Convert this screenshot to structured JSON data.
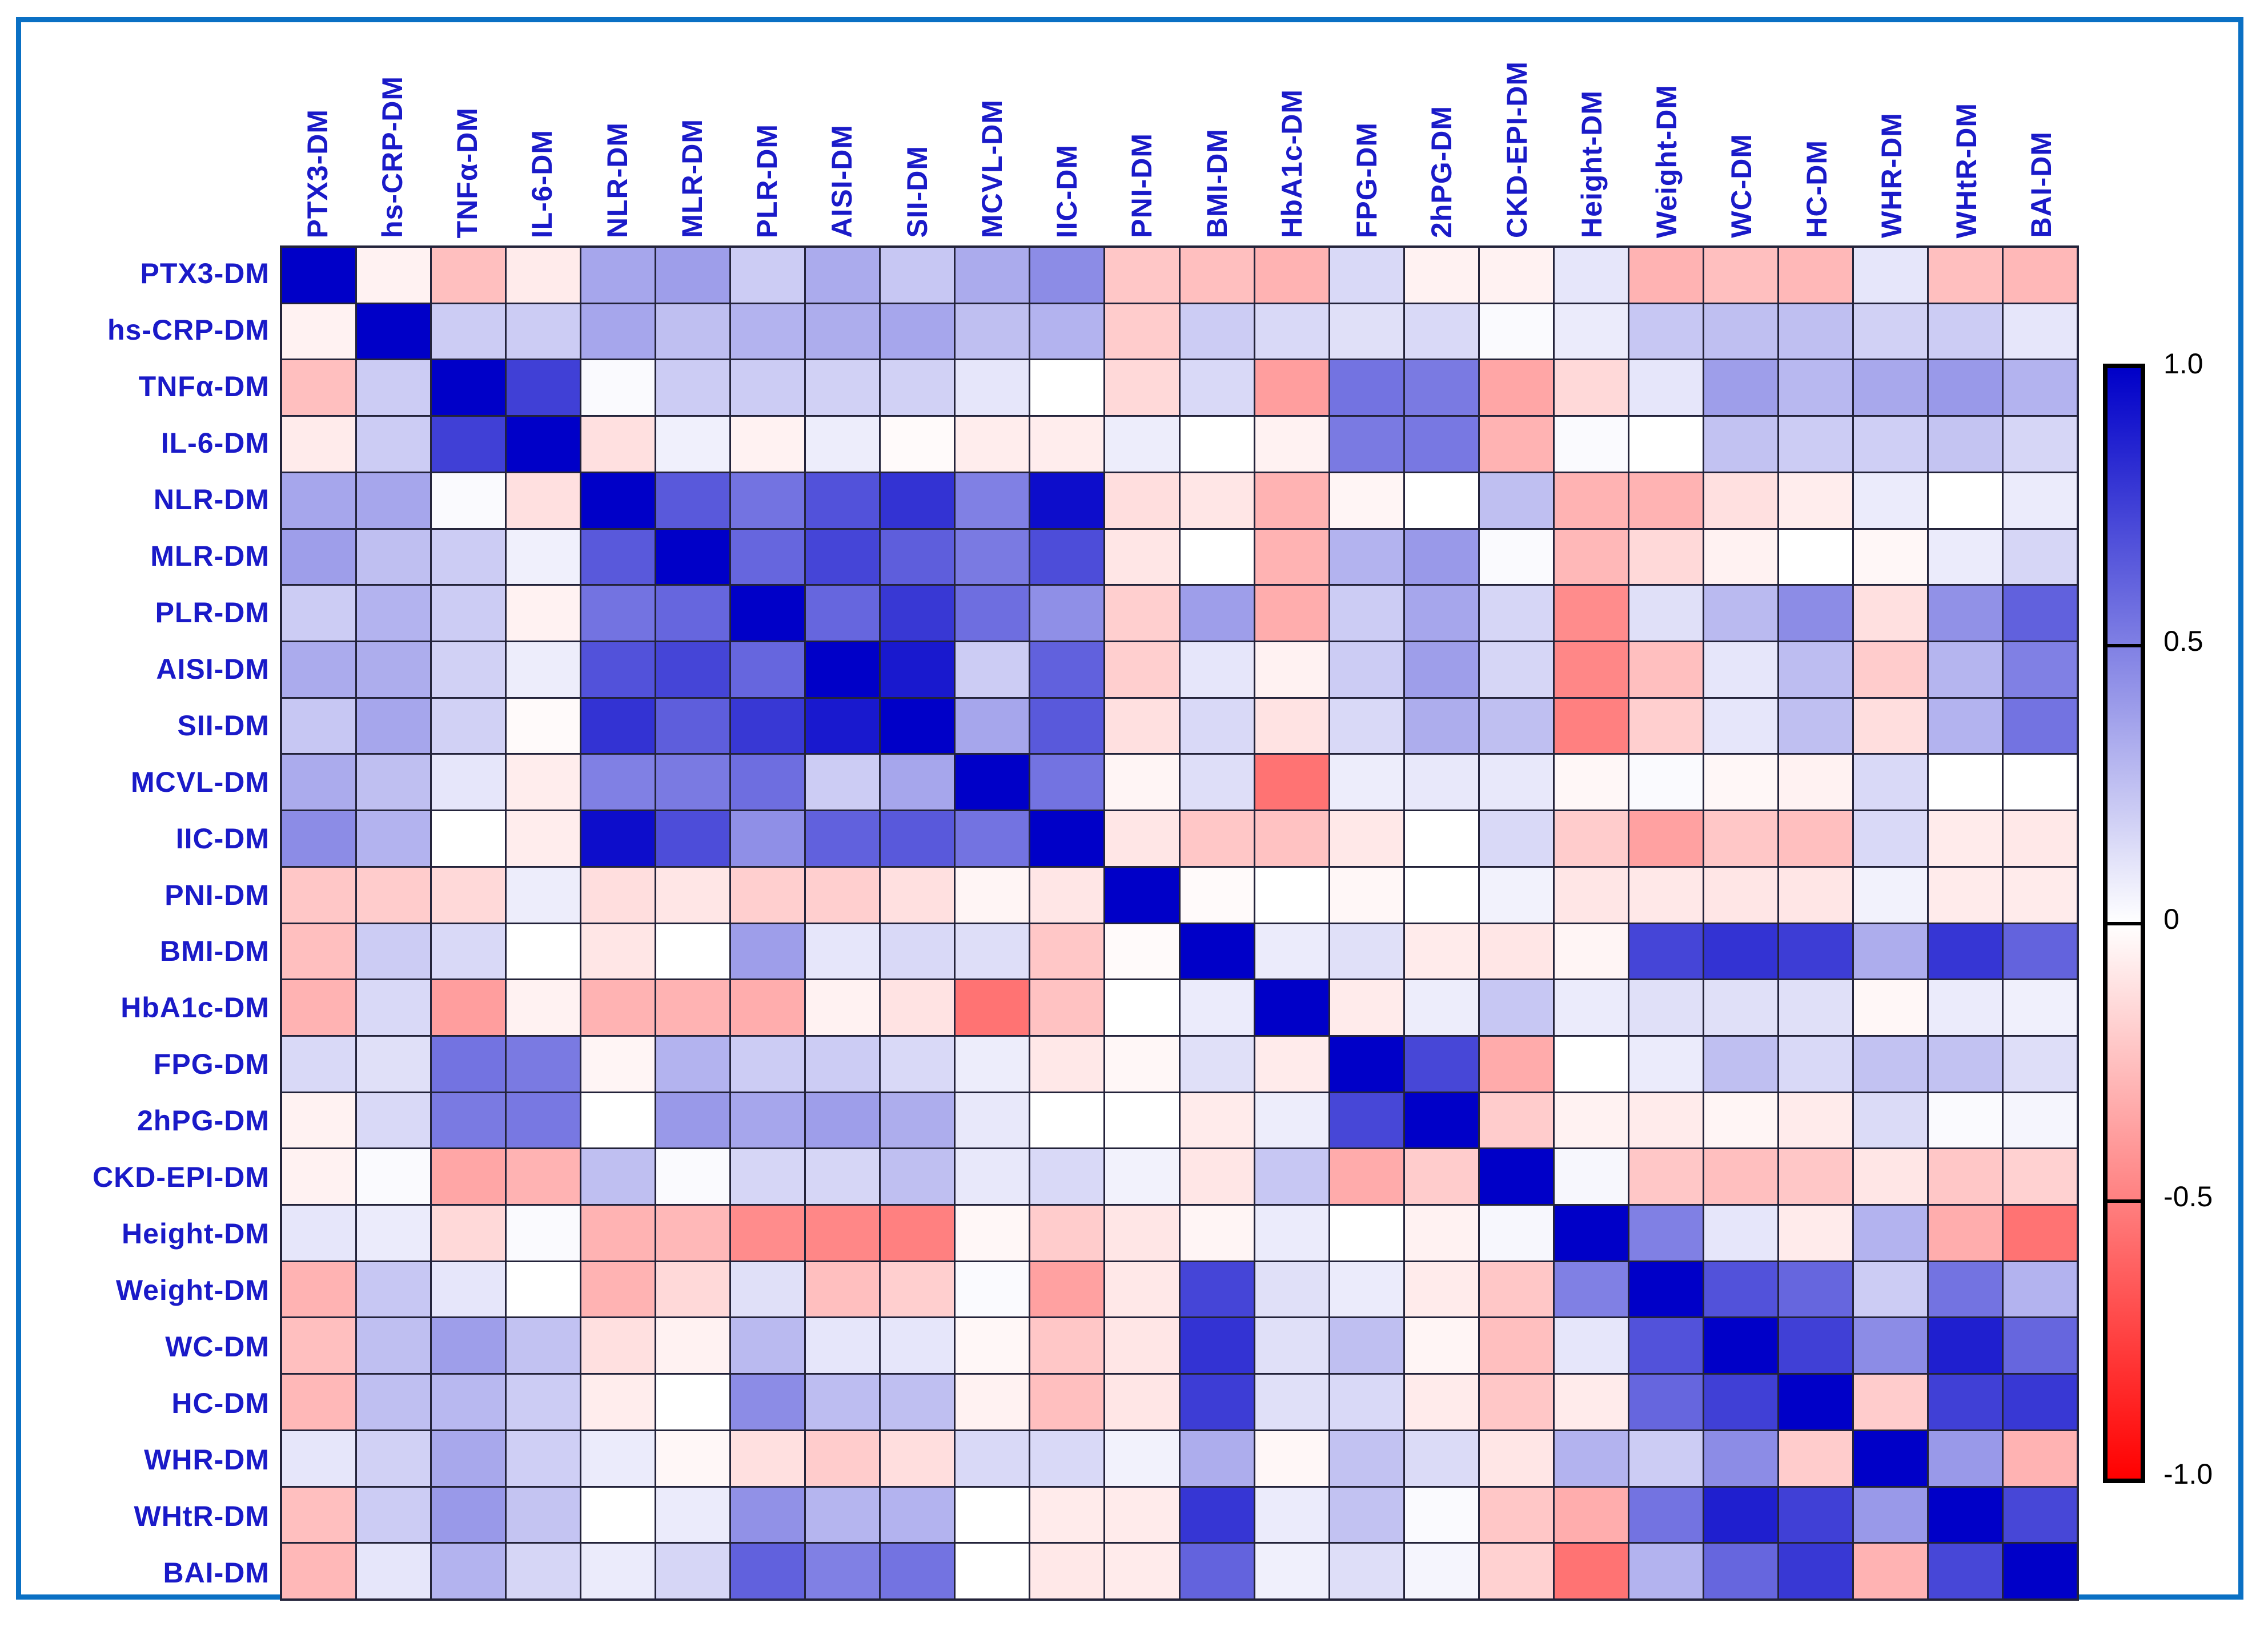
{
  "chart_data": {
    "type": "heatmap",
    "title": "",
    "x_labels": [
      "PTX3-DM",
      "hs-CRP-DM",
      "TNFα-DM",
      "IL-6-DM",
      "NLR-DM",
      "MLR-DM",
      "PLR-DM",
      "AISI-DM",
      "SII-DM",
      "MCVL-DM",
      "IIC-DM",
      "PNI-DM",
      "BMI-DM",
      "HbA1c-DM",
      "FPG-DM",
      "2hPG-DM",
      "CKD-EPI-DM",
      "Height-DM",
      "Weight-DM",
      "WC-DM",
      "HC-DM",
      "WHR-DM",
      "WHtR-DM",
      "BAI-DM"
    ],
    "y_labels": [
      "PTX3-DM",
      "hs-CRP-DM",
      "TNFα-DM",
      "IL-6-DM",
      "NLR-DM",
      "MLR-DM",
      "PLR-DM",
      "AISI-DM",
      "SII-DM",
      "MCVL-DM",
      "IIC-DM",
      "PNI-DM",
      "BMI-DM",
      "HbA1c-DM",
      "FPG-DM",
      "2hPG-DM",
      "CKD-EPI-DM",
      "Height-DM",
      "Weight-DM",
      "WC-DM",
      "HC-DM",
      "WHR-DM",
      "WHtR-DM",
      "BAI-DM"
    ],
    "vmin": -1,
    "vmax": 1,
    "grid": true,
    "legend_position": "right",
    "matrix": [
      [
        1.0,
        -0.05,
        -0.25,
        -0.08,
        0.35,
        0.38,
        0.2,
        0.33,
        0.22,
        0.33,
        0.45,
        -0.22,
        -0.25,
        -0.3,
        0.15,
        -0.05,
        -0.05,
        0.1,
        -0.3,
        -0.25,
        -0.28,
        0.1,
        -0.25,
        -0.28
      ],
      [
        -0.05,
        1.0,
        0.2,
        0.2,
        0.35,
        0.25,
        0.3,
        0.32,
        0.35,
        0.25,
        0.3,
        -0.2,
        0.2,
        0.15,
        0.12,
        0.15,
        0.02,
        0.08,
        0.22,
        0.25,
        0.25,
        0.18,
        0.2,
        0.1
      ],
      [
        -0.25,
        0.2,
        1.0,
        0.75,
        0.02,
        0.2,
        0.2,
        0.18,
        0.18,
        0.1,
        0.0,
        -0.15,
        0.15,
        -0.38,
        0.55,
        0.52,
        -0.35,
        -0.15,
        0.1,
        0.38,
        0.28,
        0.34,
        0.4,
        0.3
      ],
      [
        -0.08,
        0.2,
        0.75,
        1.0,
        -0.12,
        0.06,
        -0.05,
        0.07,
        -0.02,
        -0.07,
        -0.07,
        0.07,
        0.0,
        -0.05,
        0.52,
        0.53,
        -0.3,
        0.02,
        0.0,
        0.24,
        0.2,
        0.19,
        0.23,
        0.16
      ],
      [
        0.35,
        0.35,
        0.02,
        -0.12,
        1.0,
        0.65,
        0.55,
        0.68,
        0.8,
        0.5,
        0.95,
        -0.13,
        -0.1,
        -0.3,
        -0.04,
        0.0,
        0.25,
        -0.3,
        -0.3,
        -0.12,
        -0.07,
        0.08,
        0.0,
        0.08
      ],
      [
        0.38,
        0.25,
        0.2,
        0.06,
        0.65,
        1.0,
        0.6,
        0.73,
        0.63,
        0.52,
        0.7,
        -0.1,
        0.0,
        -0.3,
        0.3,
        0.4,
        0.02,
        -0.28,
        -0.15,
        -0.05,
        0.0,
        -0.03,
        0.08,
        0.16
      ],
      [
        0.2,
        0.3,
        0.2,
        -0.05,
        0.55,
        0.6,
        1.0,
        0.6,
        0.78,
        0.57,
        0.44,
        -0.19,
        0.38,
        -0.32,
        0.2,
        0.35,
        0.16,
        -0.45,
        0.12,
        0.27,
        0.45,
        -0.12,
        0.43,
        0.62
      ],
      [
        0.33,
        0.32,
        0.18,
        0.07,
        0.68,
        0.73,
        0.6,
        1.0,
        0.9,
        0.2,
        0.62,
        -0.19,
        0.1,
        -0.05,
        0.2,
        0.38,
        0.16,
        -0.47,
        -0.25,
        0.1,
        0.26,
        -0.2,
        0.29,
        0.5
      ],
      [
        0.22,
        0.35,
        0.18,
        -0.02,
        0.8,
        0.63,
        0.78,
        0.9,
        1.0,
        0.35,
        0.65,
        -0.12,
        0.15,
        -0.11,
        0.15,
        0.32,
        0.25,
        -0.5,
        -0.19,
        0.1,
        0.25,
        -0.13,
        0.3,
        0.55
      ],
      [
        0.33,
        0.25,
        0.1,
        -0.07,
        0.5,
        0.52,
        0.57,
        0.2,
        0.35,
        1.0,
        0.55,
        -0.04,
        0.13,
        -0.55,
        0.07,
        0.09,
        0.09,
        -0.03,
        0.02,
        -0.03,
        -0.05,
        0.15,
        0.0,
        0.0
      ],
      [
        0.45,
        0.3,
        0.0,
        -0.07,
        0.95,
        0.7,
        0.44,
        0.62,
        0.65,
        0.55,
        1.0,
        -0.1,
        -0.22,
        -0.24,
        -0.09,
        0.0,
        0.15,
        -0.2,
        -0.37,
        -0.22,
        -0.25,
        0.15,
        -0.08,
        -0.09
      ],
      [
        -0.22,
        -0.2,
        -0.15,
        0.07,
        -0.13,
        -0.1,
        -0.19,
        -0.19,
        -0.12,
        -0.04,
        -0.1,
        1.0,
        -0.02,
        0.0,
        -0.03,
        0.0,
        0.05,
        -0.1,
        -0.09,
        -0.1,
        -0.1,
        0.05,
        -0.08,
        -0.08
      ],
      [
        -0.25,
        0.2,
        0.15,
        0.0,
        -0.1,
        0.0,
        0.38,
        0.1,
        0.15,
        0.13,
        -0.22,
        -0.02,
        1.0,
        0.08,
        0.12,
        -0.08,
        -0.1,
        -0.04,
        0.73,
        0.8,
        0.76,
        0.32,
        0.79,
        0.61
      ],
      [
        -0.3,
        0.15,
        -0.38,
        -0.05,
        -0.3,
        -0.3,
        -0.32,
        -0.05,
        -0.11,
        -0.55,
        -0.24,
        0.0,
        0.08,
        1.0,
        -0.08,
        0.07,
        0.22,
        0.08,
        0.12,
        0.12,
        0.12,
        -0.03,
        0.08,
        0.06
      ],
      [
        0.15,
        0.12,
        0.55,
        0.52,
        -0.04,
        0.3,
        0.2,
        0.2,
        0.15,
        0.07,
        -0.09,
        -0.03,
        0.12,
        -0.08,
        1.0,
        0.72,
        -0.33,
        0.0,
        0.08,
        0.25,
        0.15,
        0.24,
        0.24,
        0.13
      ],
      [
        -0.05,
        0.15,
        0.52,
        0.53,
        0.0,
        0.4,
        0.35,
        0.38,
        0.32,
        0.09,
        0.0,
        0.0,
        -0.08,
        0.07,
        0.72,
        1.0,
        -0.2,
        -0.05,
        -0.08,
        -0.04,
        -0.08,
        0.14,
        0.02,
        0.04
      ],
      [
        -0.05,
        0.02,
        -0.35,
        -0.3,
        0.25,
        0.02,
        0.16,
        0.16,
        0.25,
        0.09,
        0.15,
        0.05,
        -0.1,
        0.22,
        -0.33,
        -0.2,
        1.0,
        0.03,
        -0.22,
        -0.25,
        -0.22,
        -0.1,
        -0.22,
        -0.18
      ],
      [
        0.1,
        0.08,
        -0.15,
        0.02,
        -0.3,
        -0.28,
        -0.45,
        -0.47,
        -0.5,
        -0.03,
        -0.2,
        -0.1,
        -0.04,
        0.08,
        0.0,
        -0.05,
        0.03,
        1.0,
        0.5,
        0.1,
        -0.08,
        0.3,
        -0.32,
        -0.55
      ],
      [
        -0.3,
        0.22,
        0.1,
        0.0,
        -0.3,
        -0.15,
        0.12,
        -0.25,
        -0.19,
        0.02,
        -0.37,
        -0.09,
        0.73,
        0.12,
        0.08,
        -0.08,
        -0.22,
        0.5,
        1.0,
        0.68,
        0.6,
        0.2,
        0.55,
        0.3
      ],
      [
        -0.25,
        0.25,
        0.38,
        0.24,
        -0.12,
        -0.05,
        0.27,
        0.1,
        0.1,
        -0.03,
        -0.22,
        -0.1,
        0.8,
        0.12,
        0.25,
        -0.04,
        -0.25,
        0.1,
        0.68,
        1.0,
        0.75,
        0.45,
        0.88,
        0.6
      ],
      [
        -0.28,
        0.25,
        0.28,
        0.2,
        -0.07,
        0.0,
        0.45,
        0.26,
        0.25,
        -0.05,
        -0.25,
        -0.1,
        0.76,
        0.12,
        0.15,
        -0.08,
        -0.22,
        -0.08,
        0.6,
        0.75,
        1.0,
        -0.2,
        0.75,
        0.78
      ],
      [
        0.1,
        0.18,
        0.34,
        0.19,
        0.08,
        -0.03,
        -0.12,
        -0.2,
        -0.13,
        0.15,
        0.15,
        0.05,
        0.32,
        -0.03,
        0.24,
        0.14,
        -0.1,
        0.3,
        0.2,
        0.45,
        -0.2,
        1.0,
        0.4,
        -0.3
      ],
      [
        -0.25,
        0.2,
        0.4,
        0.23,
        0.0,
        0.08,
        0.43,
        0.29,
        0.3,
        0.0,
        -0.08,
        -0.08,
        0.79,
        0.08,
        0.24,
        0.02,
        -0.22,
        -0.32,
        0.55,
        0.88,
        0.75,
        0.4,
        1.0,
        0.72
      ],
      [
        -0.28,
        0.1,
        0.3,
        0.16,
        0.08,
        0.16,
        0.62,
        0.5,
        0.55,
        0.0,
        -0.09,
        -0.08,
        0.61,
        0.06,
        0.13,
        0.04,
        -0.18,
        -0.55,
        0.3,
        0.6,
        0.78,
        -0.3,
        0.72,
        1.0
      ]
    ],
    "colorbar": {
      "tick_labels": [
        "1.0",
        "0.5",
        "0",
        "-0.5",
        "-1.0"
      ],
      "tick_values": [
        1,
        0.5,
        0,
        -0.5,
        -1
      ],
      "max_color": "#0000c8",
      "mid_color": "#ffffff",
      "min_color": "#ff0000"
    }
  },
  "styles": {
    "frame_border_color": "#0a70c4",
    "axis_label_color": "#1a1ac8",
    "grid_line_color": "#23233a",
    "tick_label_color": "#000000"
  }
}
